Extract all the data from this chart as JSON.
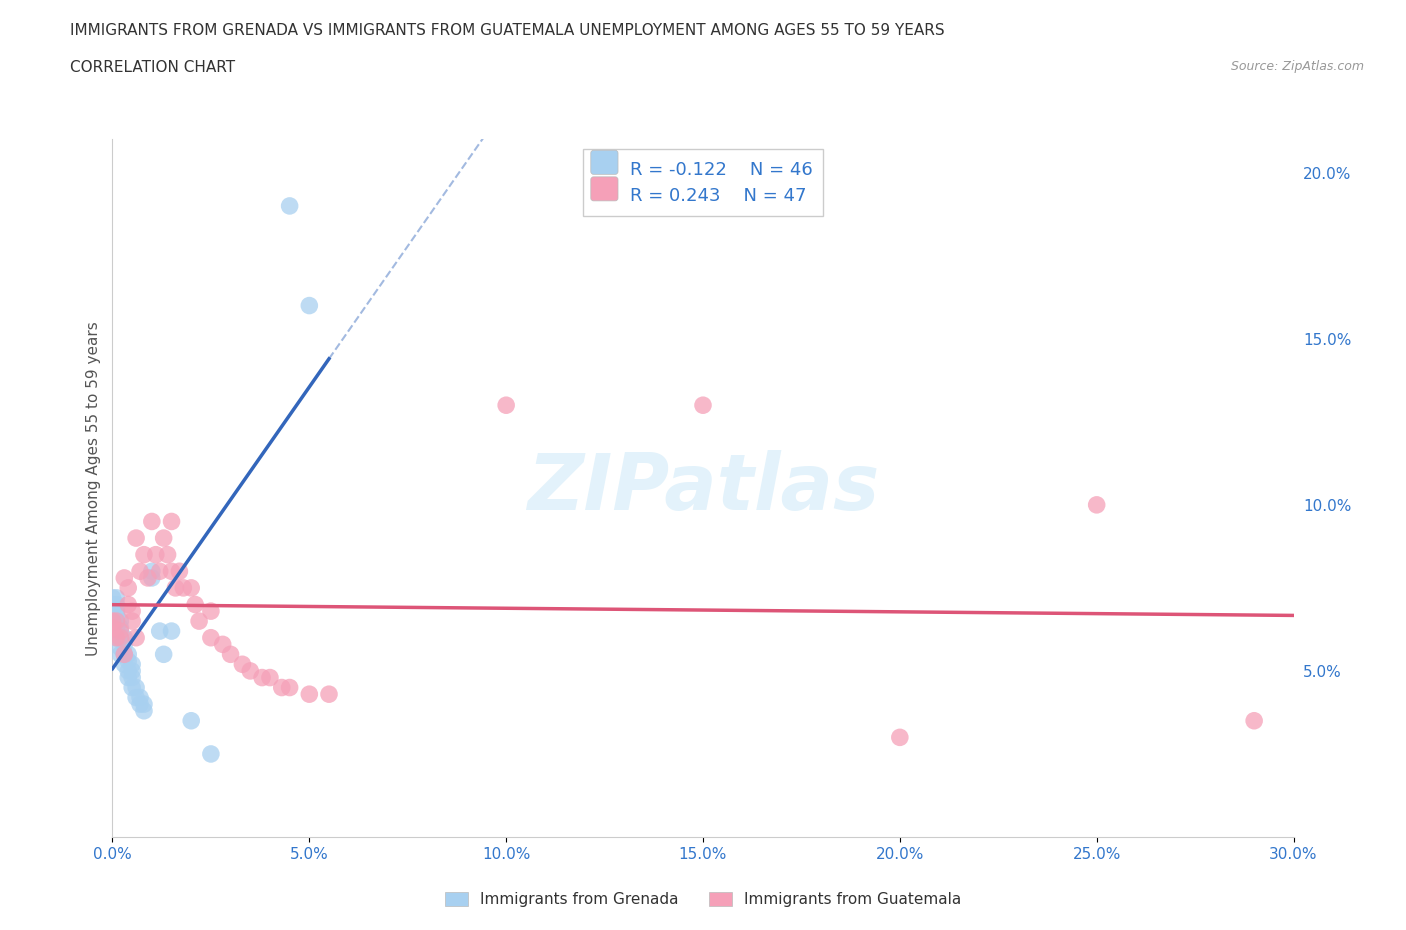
{
  "title_line1": "IMMIGRANTS FROM GRENADA VS IMMIGRANTS FROM GUATEMALA UNEMPLOYMENT AMONG AGES 55 TO 59 YEARS",
  "title_line2": "CORRELATION CHART",
  "source_text": "Source: ZipAtlas.com",
  "ylabel": "Unemployment Among Ages 55 to 59 years",
  "watermark": "ZIPatlas",
  "legend_label_1": "Immigrants from Grenada",
  "legend_label_2": "Immigrants from Guatemala",
  "r1": -0.122,
  "n1": 46,
  "r2": 0.243,
  "n2": 47,
  "color_grenada": "#a8d0f0",
  "color_guatemala": "#f5a0b8",
  "line_color_grenada": "#3366bb",
  "line_color_guatemala": "#dd5577",
  "xmin": 0.0,
  "xmax": 0.3,
  "ymin": 0.0,
  "ymax": 0.21,
  "xticks": [
    0.0,
    0.05,
    0.1,
    0.15,
    0.2,
    0.25,
    0.3
  ],
  "yticks_right": [
    0.05,
    0.1,
    0.15,
    0.2
  ],
  "grenada_x": [
    0.0,
    0.0,
    0.0,
    0.0,
    0.0,
    0.0,
    0.001,
    0.001,
    0.001,
    0.001,
    0.001,
    0.001,
    0.001,
    0.001,
    0.002,
    0.002,
    0.002,
    0.002,
    0.002,
    0.003,
    0.003,
    0.003,
    0.003,
    0.004,
    0.004,
    0.004,
    0.004,
    0.005,
    0.005,
    0.005,
    0.005,
    0.006,
    0.006,
    0.007,
    0.007,
    0.008,
    0.008,
    0.01,
    0.01,
    0.012,
    0.013,
    0.015,
    0.02,
    0.025,
    0.045,
    0.05
  ],
  "grenada_y": [
    0.063,
    0.065,
    0.067,
    0.069,
    0.07,
    0.072,
    0.06,
    0.062,
    0.063,
    0.065,
    0.067,
    0.068,
    0.07,
    0.072,
    0.055,
    0.057,
    0.06,
    0.063,
    0.065,
    0.052,
    0.055,
    0.058,
    0.06,
    0.048,
    0.05,
    0.053,
    0.055,
    0.045,
    0.048,
    0.05,
    0.052,
    0.042,
    0.045,
    0.04,
    0.042,
    0.038,
    0.04,
    0.078,
    0.08,
    0.062,
    0.055,
    0.062,
    0.035,
    0.025,
    0.19,
    0.16
  ],
  "guatemala_x": [
    0.0,
    0.0,
    0.001,
    0.001,
    0.002,
    0.002,
    0.003,
    0.003,
    0.004,
    0.004,
    0.005,
    0.005,
    0.006,
    0.006,
    0.007,
    0.008,
    0.009,
    0.01,
    0.011,
    0.012,
    0.013,
    0.014,
    0.015,
    0.015,
    0.016,
    0.017,
    0.018,
    0.02,
    0.021,
    0.022,
    0.025,
    0.025,
    0.028,
    0.03,
    0.033,
    0.035,
    0.038,
    0.04,
    0.043,
    0.045,
    0.05,
    0.055,
    0.1,
    0.15,
    0.2,
    0.25,
    0.29
  ],
  "guatemala_y": [
    0.063,
    0.065,
    0.06,
    0.065,
    0.06,
    0.062,
    0.055,
    0.078,
    0.07,
    0.075,
    0.065,
    0.068,
    0.06,
    0.09,
    0.08,
    0.085,
    0.078,
    0.095,
    0.085,
    0.08,
    0.09,
    0.085,
    0.08,
    0.095,
    0.075,
    0.08,
    0.075,
    0.075,
    0.07,
    0.065,
    0.06,
    0.068,
    0.058,
    0.055,
    0.052,
    0.05,
    0.048,
    0.048,
    0.045,
    0.045,
    0.043,
    0.043,
    0.13,
    0.13,
    0.03,
    0.1,
    0.035
  ]
}
